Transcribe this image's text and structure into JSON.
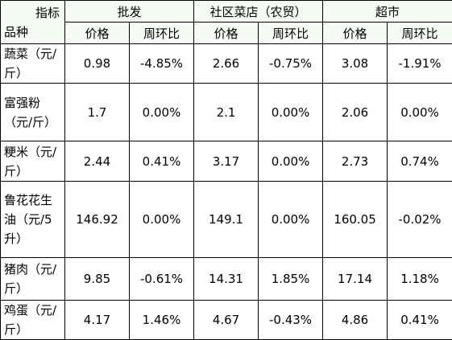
{
  "header": {
    "corner_top": "指标",
    "corner_bottom": "品种",
    "groups": [
      "批发",
      "社区菜店（农贸）",
      "超市"
    ],
    "subheaders": [
      "价格",
      "周环比",
      "价格",
      "周环比",
      "价格",
      "周环比"
    ]
  },
  "table": {
    "rows": [
      [
        "蔬菜（元/斤）",
        "0.98",
        "-4.85%",
        "2.66",
        "-0.75%",
        "3.08",
        "-1.91%"
      ],
      [
        "富强粉（元/斤）",
        "1.7",
        "0.00%",
        "2.1",
        "0.00%",
        "2.06",
        "0.00%"
      ],
      [
        "粳米（元/斤）",
        "2.44",
        "0.41%",
        "3.17",
        "0.00%",
        "2.73",
        "0.74%"
      ],
      [
        "鲁花花生油（元/5升）",
        "146.92",
        "0.00%",
        "149.1",
        "0.00%",
        "160.05",
        "-0.02%"
      ],
      [
        "猪肉（元/斤）",
        "9.85",
        "-0.61%",
        "14.31",
        "1.85%",
        "17.14",
        "1.18%"
      ],
      [
        "鸡蛋（元/斤）",
        "4.17",
        "1.46%",
        "4.67",
        "-0.43%",
        "4.86",
        "0.41%"
      ]
    ]
  }
}
